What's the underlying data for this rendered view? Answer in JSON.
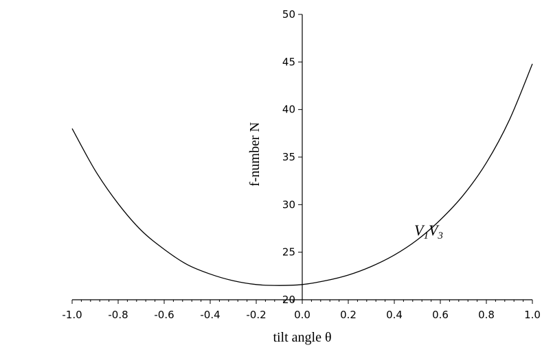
{
  "chart_data": {
    "type": "line",
    "xlabel": "tilt angle θ",
    "ylabel": "f-number N",
    "xlim": [
      -1.0,
      1.0
    ],
    "ylim": [
      20,
      50
    ],
    "x_ticks": [
      -1.0,
      -0.8,
      -0.6,
      -0.4,
      -0.2,
      0.0,
      0.2,
      0.4,
      0.6,
      0.8,
      1.0
    ],
    "x_tick_labels": [
      "-1.0",
      "-0.8",
      "-0.6",
      "-0.4",
      "-0.2",
      "0.0",
      "0.2",
      "0.4",
      "0.6",
      "0.8",
      "1.0"
    ],
    "y_ticks": [
      20,
      25,
      30,
      35,
      40,
      45,
      50
    ],
    "y_tick_labels": [
      "20",
      "25",
      "30",
      "35",
      "40",
      "45",
      "50"
    ],
    "grid": false,
    "series": [
      {
        "name": "V1V3",
        "x": [
          -1.0,
          -0.9,
          -0.8,
          -0.7,
          -0.6,
          -0.5,
          -0.4,
          -0.3,
          -0.2,
          -0.1,
          0.0,
          0.1,
          0.2,
          0.3,
          0.4,
          0.5,
          0.6,
          0.7,
          0.8,
          0.9,
          1.0
        ],
        "y": [
          38.0,
          33.6,
          30.1,
          27.3,
          25.3,
          23.7,
          22.7,
          22.0,
          21.6,
          21.5,
          21.6,
          22.0,
          22.6,
          23.5,
          24.7,
          26.3,
          28.4,
          31.0,
          34.4,
          38.9,
          44.8
        ]
      }
    ],
    "annotation": {
      "base": "V",
      "sub1": "1",
      "base2": "V",
      "sub2": "3"
    }
  }
}
